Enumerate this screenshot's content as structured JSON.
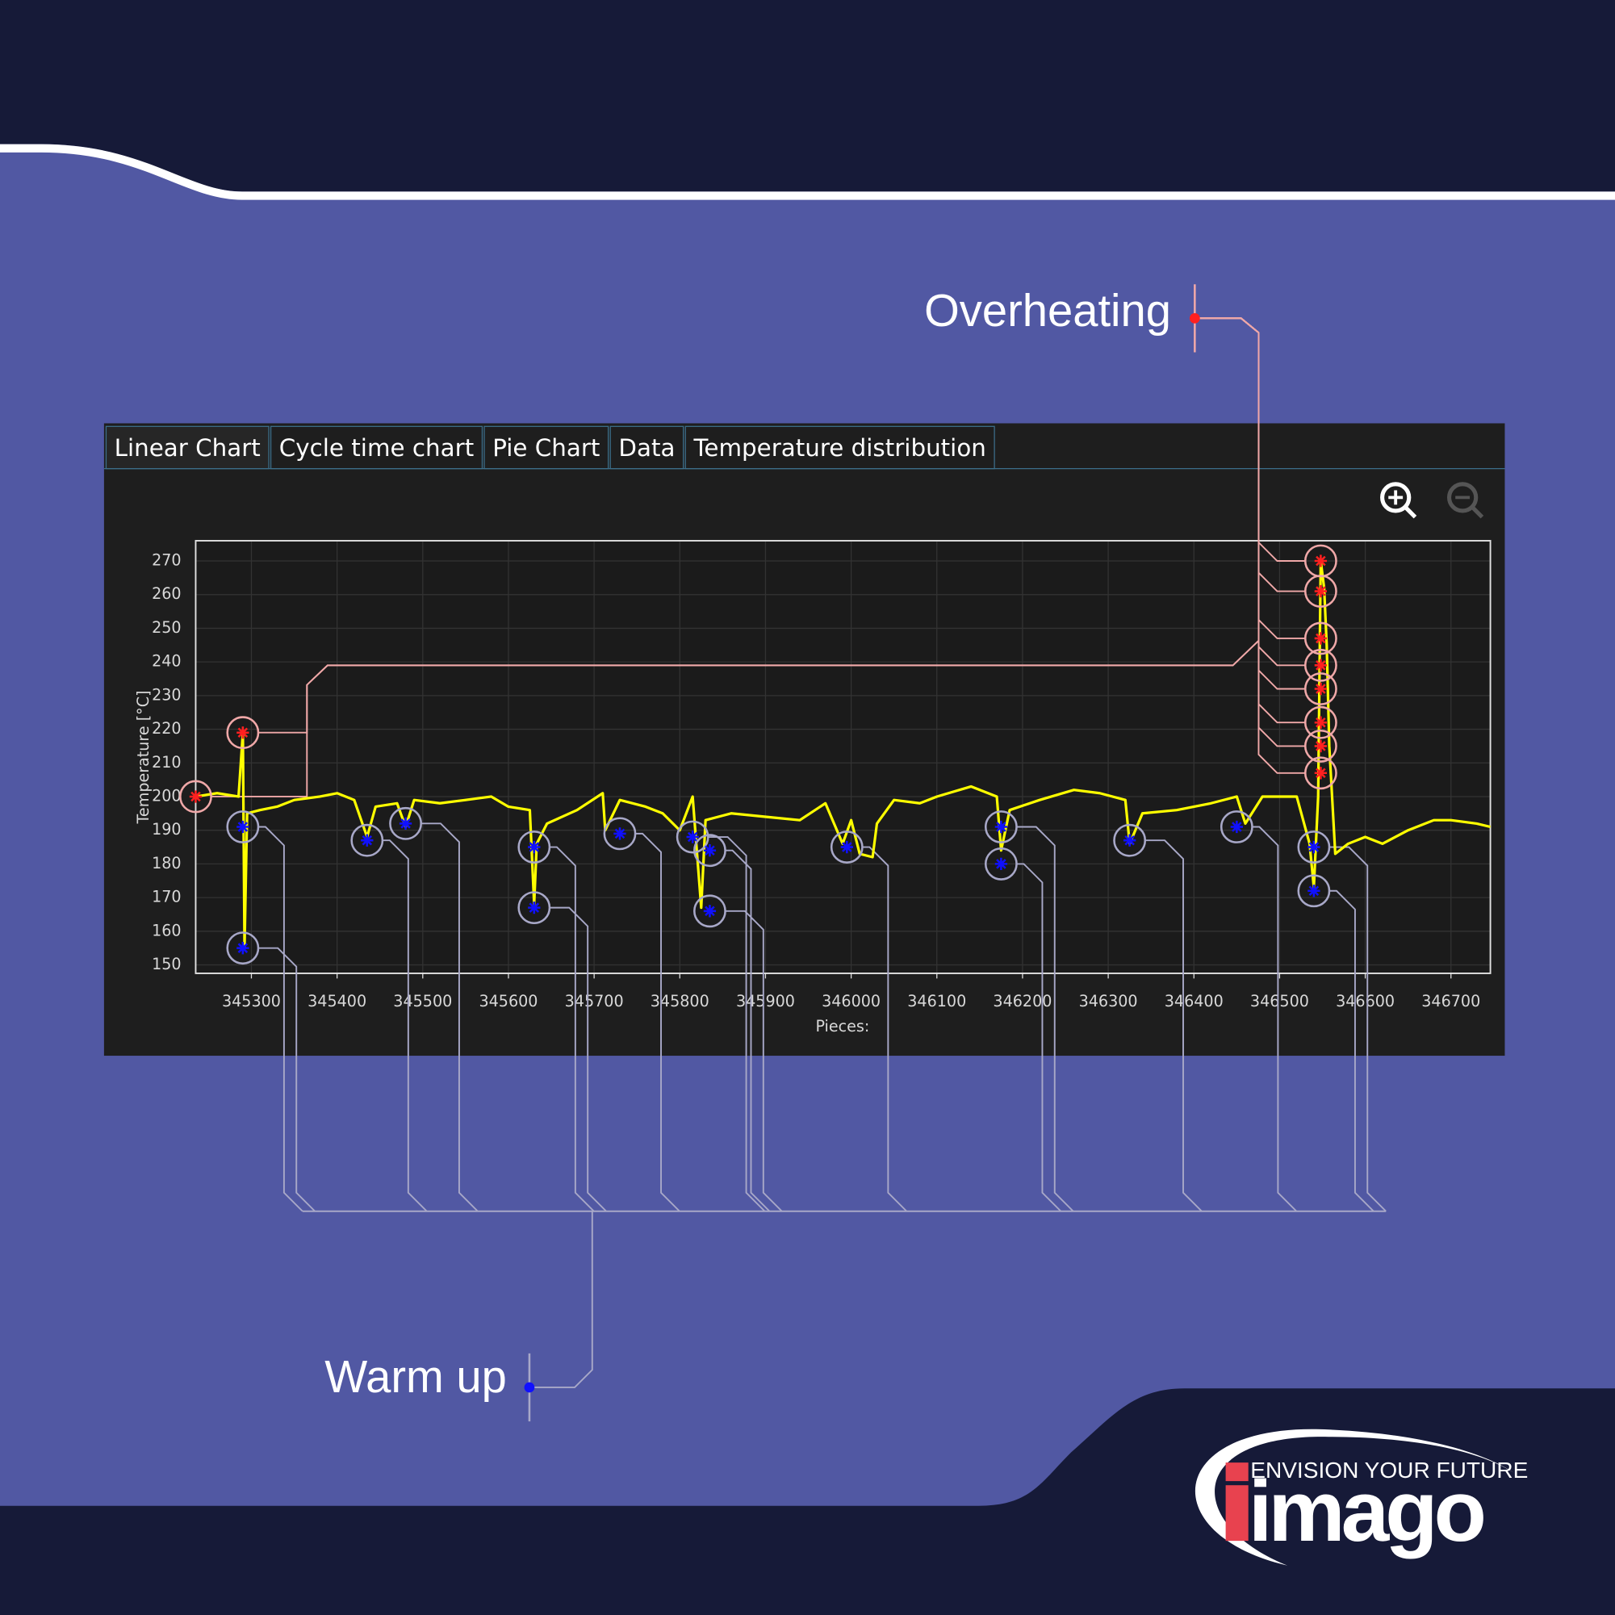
{
  "tabs": [
    "Linear Chart",
    "Cycle time chart",
    "Pie Chart",
    "Data",
    "Temperature distribution"
  ],
  "logo": {
    "tagline": "ENVISION YOUR FUTURE",
    "name": "imago"
  },
  "chart_data": {
    "type": "line",
    "x_label": "Pieces:",
    "y_label": "Temperature [°C]",
    "grid": true,
    "xlim": [
      345235,
      346746
    ],
    "ylim": [
      147.5,
      276
    ],
    "xticks": [
      345300,
      345400,
      345500,
      345600,
      345700,
      345800,
      345900,
      346000,
      346100,
      346200,
      346300,
      346400,
      346500,
      346600,
      346700
    ],
    "yticks": [
      150,
      160,
      170,
      180,
      190,
      200,
      210,
      220,
      230,
      240,
      250,
      260,
      270
    ],
    "x": [
      345235,
      345260,
      345285,
      345290,
      345292,
      345295,
      345310,
      345330,
      345350,
      345380,
      345400,
      345420,
      345435,
      345445,
      345470,
      345480,
      345490,
      345520,
      345550,
      345580,
      345600,
      345625,
      345630,
      345633,
      345645,
      345680,
      345710,
      345713,
      345730,
      345760,
      345780,
      345800,
      345815,
      345825,
      345830,
      345860,
      345900,
      345940,
      345970,
      345990,
      346000,
      346010,
      346025,
      346030,
      346050,
      346080,
      346100,
      346140,
      346170,
      346175,
      346185,
      346220,
      346260,
      346290,
      346320,
      346325,
      346340,
      346380,
      346420,
      346450,
      346460,
      346480,
      346520,
      346535,
      346540,
      346545,
      346548,
      346552,
      346555,
      346558,
      346565,
      346580,
      346600,
      346620,
      346650,
      346680,
      346700,
      346730,
      346746
    ],
    "series": [
      {
        "color": "#ffff00",
        "values": [
          200,
          201,
          200,
          219,
          155,
          195,
          196,
          197,
          199,
          200,
          201,
          199,
          188,
          197,
          198,
          191,
          199,
          198,
          199,
          200,
          197,
          196,
          168,
          186,
          192,
          196,
          201,
          190,
          199,
          197,
          195,
          190,
          200,
          167,
          193,
          195,
          194,
          193,
          198,
          186,
          193,
          183,
          182,
          192,
          199,
          198,
          200,
          203,
          200,
          184,
          196,
          199,
          202,
          201,
          199,
          186,
          195,
          196,
          198,
          200,
          192,
          200,
          200,
          186,
          173,
          200,
          270,
          262,
          245,
          215,
          183,
          186,
          188,
          186,
          190,
          193,
          193,
          192,
          191
        ]
      }
    ],
    "markers": [
      {
        "label": "Overheating",
        "color": "#ff2020",
        "x": [
          345235,
          345290,
          346548,
          346548,
          346548,
          346548,
          346548,
          346548,
          346548,
          346548
        ],
        "values": [
          200,
          219,
          270,
          261,
          247,
          239,
          232,
          222,
          215,
          207
        ]
      },
      {
        "label": "Warm up",
        "color": "#1010ff",
        "x": [
          345290,
          345290,
          345435,
          345480,
          345630,
          345630,
          345730,
          345815,
          345835,
          345835,
          345995,
          346175,
          346175,
          346325,
          346450,
          346540,
          346540
        ],
        "values": [
          191,
          155,
          187,
          192,
          185,
          167,
          189,
          188,
          184,
          166,
          185,
          191,
          180,
          187,
          191,
          185,
          172
        ]
      }
    ]
  }
}
